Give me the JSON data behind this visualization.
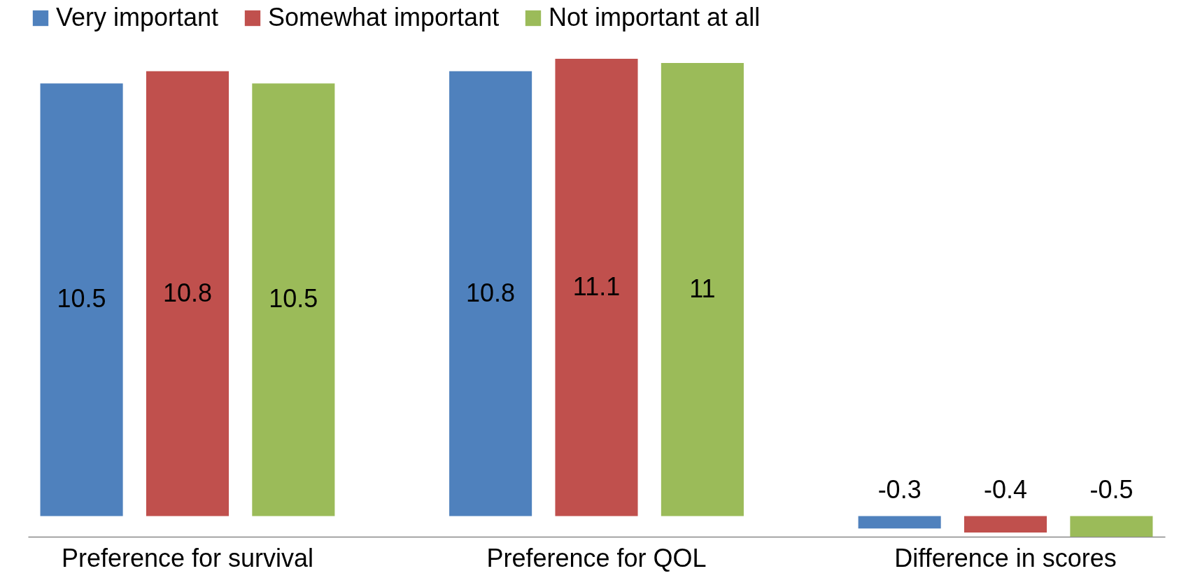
{
  "chart_data": {
    "type": "bar",
    "categories": [
      "Preference for survival",
      "Preference for QOL",
      "Difference in scores"
    ],
    "series": [
      {
        "name": "Very important",
        "color": "#4f81bd",
        "values": [
          10.5,
          10.8,
          -0.3
        ]
      },
      {
        "name": "Somewhat important",
        "color": "#c0504d",
        "values": [
          10.8,
          11.1,
          -0.4
        ]
      },
      {
        "name": "Not important at all",
        "color": "#9bbb59",
        "values": [
          10.5,
          11,
          -0.5
        ]
      }
    ],
    "data_labels": true,
    "legend": "top",
    "grid": false
  }
}
